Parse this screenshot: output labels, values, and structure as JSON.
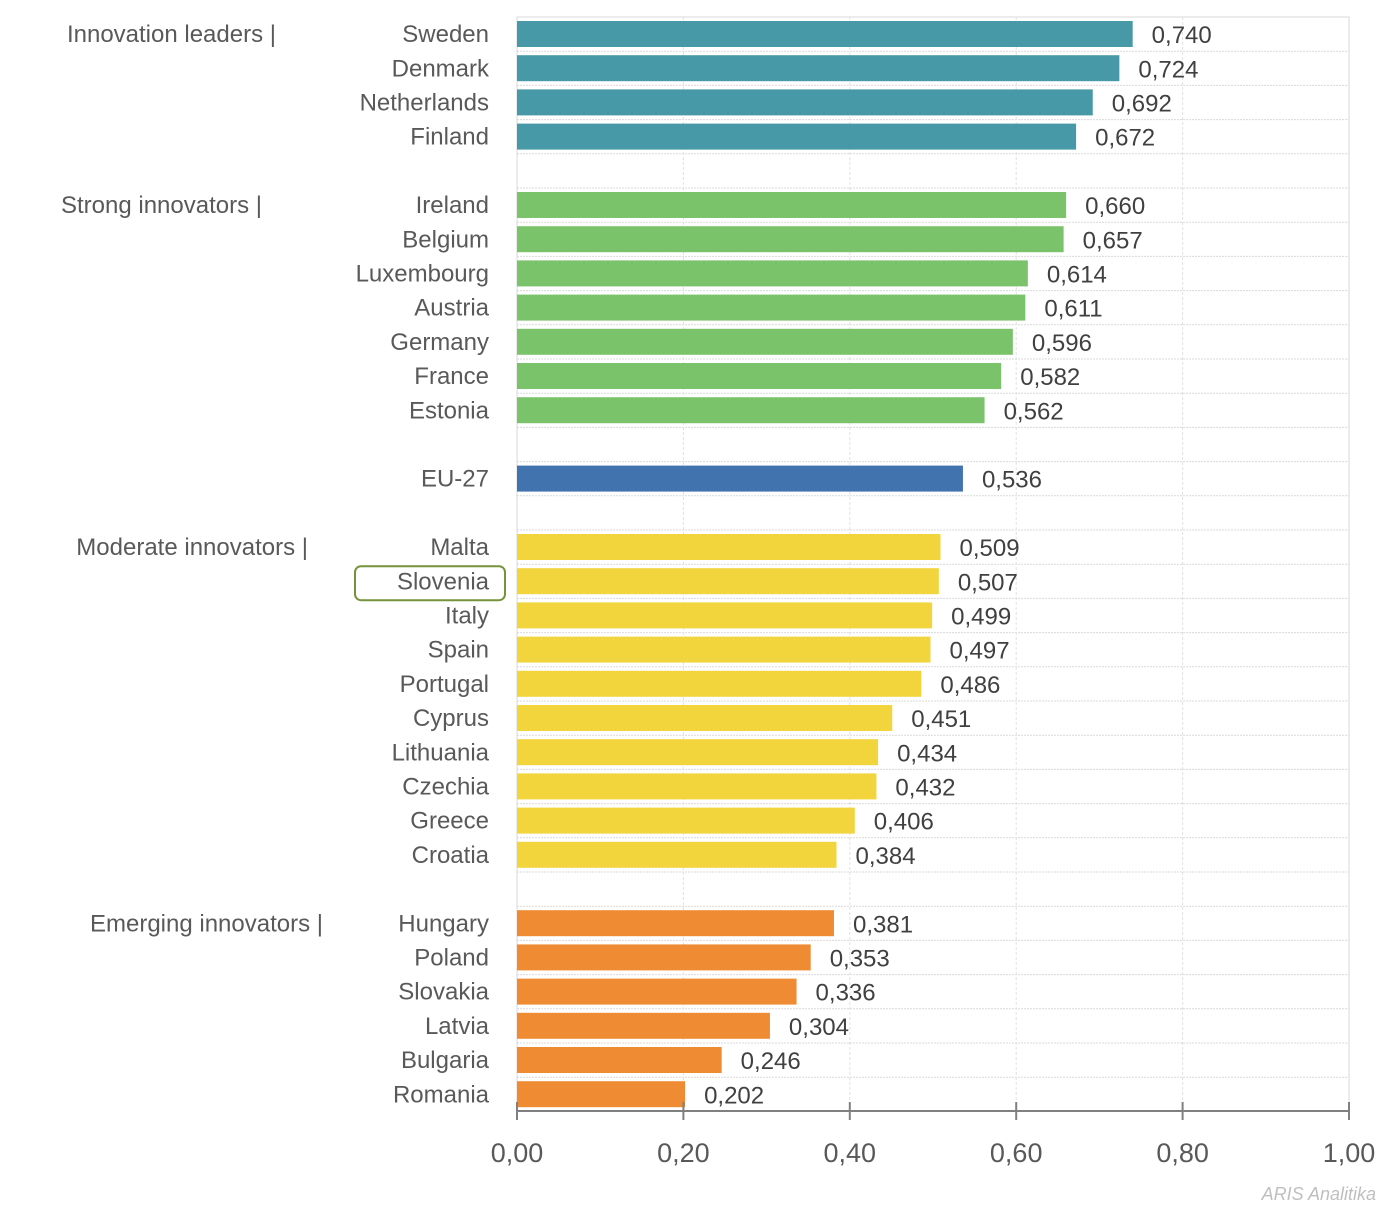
{
  "chart_data": {
    "type": "bar",
    "orientation": "horizontal",
    "title": "",
    "xlabel": "",
    "ylabel": "",
    "xlim": [
      0,
      1
    ],
    "x_ticks": [
      "0,00",
      "0,20",
      "0,40",
      "0,60",
      "0,80",
      "1,00"
    ],
    "x_tick_values": [
      0,
      0.2,
      0.4,
      0.6,
      0.8,
      1.0
    ],
    "grid": true,
    "decimal_separator": ",",
    "highlighted_category": "Slovenia",
    "highlight_color": "#76933c",
    "groups": [
      {
        "name": "Innovation leaders",
        "label": "Innovation leaders  |",
        "color": "#4899a8",
        "categories": [
          "Sweden",
          "Denmark",
          "Netherlands",
          "Finland"
        ],
        "values": [
          0.74,
          0.724,
          0.692,
          0.672
        ],
        "value_labels": [
          "0,740",
          "0,724",
          "0,692",
          "0,672"
        ]
      },
      {
        "name": "Strong innovators",
        "label": "Strong innovators |",
        "color": "#7bc36a",
        "categories": [
          "Ireland",
          "Belgium",
          "Luxembourg",
          "Austria",
          "Germany",
          "France",
          "Estonia"
        ],
        "values": [
          0.66,
          0.657,
          0.614,
          0.611,
          0.596,
          0.582,
          0.562
        ],
        "value_labels": [
          "0,660",
          "0,657",
          "0,614",
          "0,611",
          "0,596",
          "0,582",
          "0,562"
        ]
      },
      {
        "name": "EU-27",
        "label": "",
        "color": "#4174af",
        "categories": [
          "EU-27"
        ],
        "values": [
          0.536
        ],
        "value_labels": [
          "0,536"
        ]
      },
      {
        "name": "Moderate innovators",
        "label": "Moderate innovators |",
        "color": "#f2d53c",
        "categories": [
          "Malta",
          "Slovenia",
          "Italy",
          "Spain",
          "Portugal",
          "Cyprus",
          "Lithuania",
          "Czechia",
          "Greece",
          "Croatia"
        ],
        "values": [
          0.509,
          0.507,
          0.499,
          0.497,
          0.486,
          0.451,
          0.434,
          0.432,
          0.406,
          0.384
        ],
        "value_labels": [
          "0,509",
          "0,507",
          "0,499",
          "0,497",
          "0,486",
          "0,451",
          "0,434",
          "0,432",
          "0,406",
          "0,384"
        ]
      },
      {
        "name": "Emerging innovators",
        "label": "Emerging innovators  |",
        "color": "#ef8b33",
        "categories": [
          "Hungary",
          "Poland",
          "Slovakia",
          "Latvia",
          "Bulgaria",
          "Romania"
        ],
        "values": [
          0.381,
          0.353,
          0.336,
          0.304,
          0.246,
          0.202
        ],
        "value_labels": [
          "0,381",
          "0,353",
          "0,336",
          "0,304",
          "0,246",
          "0,202"
        ]
      }
    ]
  },
  "credit": "ARIS Analitika"
}
